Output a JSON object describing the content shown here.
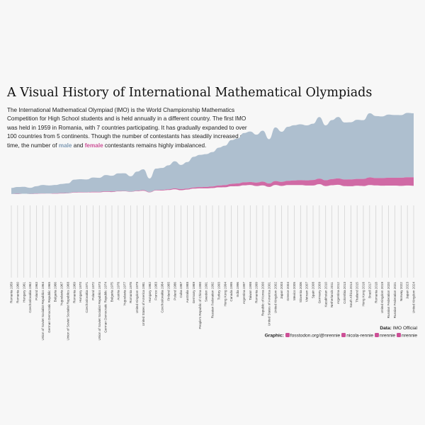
{
  "header": {
    "title": "A Visual History of International Mathematical Olympiads",
    "intro": "The International Mathematical Olympiad (IMO) is the World Championship Mathematics Competition for High School students and is held annually in a different country. The first IMO was held in 1959 in Romania, with 7 countries participating. It has gradually expanded to over 100 countries from 5 continents. Though the number of contestants has steadily increased over time, the number of ",
    "intro_male": "male",
    "intro_and": " and ",
    "intro_female": "female",
    "intro_end": " contestants remains highly imbalanced."
  },
  "colors": {
    "male": "#aebfcf",
    "female": "#d06aa5",
    "gridline": "#c8c8c8",
    "background": "#f7f7f7"
  },
  "caption": {
    "data_label": "Data:",
    "data_value": "IMO Official",
    "graphic_label": "Graphic:",
    "mastodon_icon": "mastodon-icon",
    "mastodon": "fosstodon.org/@nrennie",
    "linkedin_icon": "linkedin-icon",
    "linkedin": "nicola-rennie",
    "bluesky_icon": "bluesky-icon",
    "bluesky": "nrennie",
    "github_icon": "github-icon",
    "github": "nrennie"
  },
  "chart_data": {
    "type": "area",
    "layout": "stream",
    "x_label_format": "{country} {year}",
    "legend": "none",
    "categories": [
      {
        "year": 1959,
        "country": "Romania"
      },
      {
        "year": 1960,
        "country": "Romania"
      },
      {
        "year": 1961,
        "country": "Hungary"
      },
      {
        "year": 1962,
        "country": "Czechoslovakia"
      },
      {
        "year": 1963,
        "country": "Poland"
      },
      {
        "year": 1964,
        "country": "Union of Soviet Socialist Republics"
      },
      {
        "year": 1965,
        "country": "German Democratic Republic"
      },
      {
        "year": 1966,
        "country": "Bulgaria"
      },
      {
        "year": 1967,
        "country": "Yugoslavia"
      },
      {
        "year": 1968,
        "country": "Union of Soviet Socialist Republics"
      },
      {
        "year": 1969,
        "country": "Romania"
      },
      {
        "year": 1970,
        "country": "Hungary"
      },
      {
        "year": 1971,
        "country": "Czechoslovakia"
      },
      {
        "year": 1972,
        "country": "Poland"
      },
      {
        "year": 1973,
        "country": "Union of Soviet Socialist Republics"
      },
      {
        "year": 1974,
        "country": "German Democratic Republic"
      },
      {
        "year": 1975,
        "country": "Bulgaria"
      },
      {
        "year": 1976,
        "country": "Austria"
      },
      {
        "year": 1977,
        "country": "Yugoslavia"
      },
      {
        "year": 1978,
        "country": "Romania"
      },
      {
        "year": 1979,
        "country": "United Kingdom"
      },
      {
        "year": 1981,
        "country": "United States of America"
      },
      {
        "year": 1982,
        "country": "Hungary"
      },
      {
        "year": 1983,
        "country": "France"
      },
      {
        "year": 1984,
        "country": "Czechoslovakia"
      },
      {
        "year": 1985,
        "country": "Finland"
      },
      {
        "year": 1986,
        "country": "Poland"
      },
      {
        "year": 1987,
        "country": "Cuba"
      },
      {
        "year": 1988,
        "country": "Australia"
      },
      {
        "year": 1989,
        "country": "Germany"
      },
      {
        "year": 1990,
        "country": "People's Republic of China"
      },
      {
        "year": 1991,
        "country": "Sweden"
      },
      {
        "year": 1992,
        "country": "Russian Federation"
      },
      {
        "year": 1993,
        "country": "Turkey"
      },
      {
        "year": 1994,
        "country": "Hong Kong"
      },
      {
        "year": 1995,
        "country": "Canada"
      },
      {
        "year": 1996,
        "country": "India"
      },
      {
        "year": 1997,
        "country": "Argentina"
      },
      {
        "year": 1998,
        "country": "Taiwan"
      },
      {
        "year": 1999,
        "country": "Romania"
      },
      {
        "year": 2000,
        "country": "Republic of Korea"
      },
      {
        "year": 2001,
        "country": "United States of America"
      },
      {
        "year": 2002,
        "country": "United Kingdom"
      },
      {
        "year": 2003,
        "country": "Japan"
      },
      {
        "year": 2004,
        "country": "Greece"
      },
      {
        "year": 2005,
        "country": "Mexico"
      },
      {
        "year": 2006,
        "country": "Slovenia"
      },
      {
        "year": 2007,
        "country": "Vietnam"
      },
      {
        "year": 2008,
        "country": "Spain"
      },
      {
        "year": 2009,
        "country": "Germany"
      },
      {
        "year": 2010,
        "country": "Kazakhstan"
      },
      {
        "year": 2011,
        "country": "Netherlands"
      },
      {
        "year": 2012,
        "country": "Argentina"
      },
      {
        "year": 2013,
        "country": "Colombia"
      },
      {
        "year": 2014,
        "country": "South Africa"
      },
      {
        "year": 2015,
        "country": "Thailand"
      },
      {
        "year": 2016,
        "country": "Hong Kong"
      },
      {
        "year": 2017,
        "country": "Brazil"
      },
      {
        "year": 2018,
        "country": "Romania"
      },
      {
        "year": 2019,
        "country": "United Kingdom"
      },
      {
        "year": 2020,
        "country": "Russian Federation"
      },
      {
        "year": 2021,
        "country": "Russian Federation"
      },
      {
        "year": 2022,
        "country": "Norway"
      },
      {
        "year": 2023,
        "country": "Japan"
      },
      {
        "year": 2024,
        "country": "United Kingdom"
      }
    ],
    "series": [
      {
        "name": "male",
        "values": [
          52,
          58,
          60,
          53,
          64,
          72,
          69,
          72,
          79,
          83,
          109,
          112,
          110,
          123,
          121,
          140,
          135,
          152,
          153,
          132,
          164,
          180,
          117,
          185,
          189,
          207,
          235,
          209,
          229,
          265,
          278,
          283,
          297,
          327,
          340,
          378,
          389,
          426,
          437,
          414,
          441,
          383,
          463,
          433,
          467,
          477,
          483,
          475,
          486,
          532,
          474,
          510,
          531,
          493,
          494,
          511,
          508,
          555,
          536,
          533,
          545,
          542,
          541,
          556,
          553
        ]
      },
      {
        "name": "female",
        "values": [
          0,
          2,
          0,
          1,
          2,
          2,
          1,
          3,
          3,
          2,
          3,
          3,
          2,
          4,
          4,
          4,
          5,
          3,
          2,
          2,
          4,
          5,
          3,
          4,
          5,
          6,
          7,
          9,
          8,
          9,
          10,
          12,
          13,
          15,
          18,
          20,
          22,
          25,
          24,
          28,
          30,
          28,
          32,
          33,
          35,
          38,
          40,
          42,
          45,
          46,
          48,
          50,
          52,
          54,
          56,
          55,
          58,
          62,
          60,
          62,
          65,
          64,
          67,
          68,
          70
        ]
      }
    ]
  }
}
